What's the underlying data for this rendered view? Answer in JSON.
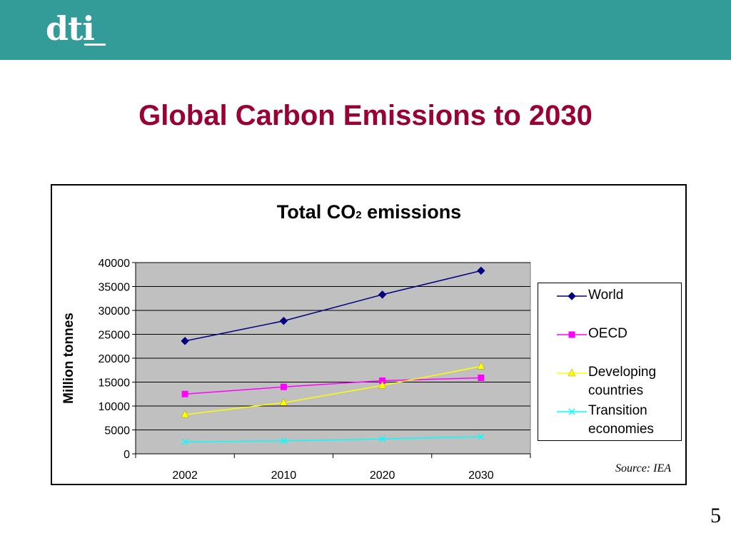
{
  "header": {
    "logo_text": "dti",
    "bar_color": "#339b98"
  },
  "slide": {
    "title": "Global Carbon Emissions to 2030",
    "title_color": "#990033",
    "page_number": "5"
  },
  "chart_data": {
    "type": "line",
    "title": "Total CO",
    "title_subscript": "2",
    "title_suffix": " emissions",
    "ylabel": "Million tonnes",
    "xlabel": "",
    "categories": [
      "2002",
      "2010",
      "2020",
      "2030"
    ],
    "ylim": [
      0,
      40000
    ],
    "yticks": [
      0,
      5000,
      10000,
      15000,
      20000,
      25000,
      30000,
      35000,
      40000
    ],
    "plot_background": "#c0c0c0",
    "grid": true,
    "legend_position": "right",
    "series": [
      {
        "name": "World",
        "values": [
          23600,
          27800,
          33300,
          38300
        ],
        "color": "#000080",
        "marker": "diamond"
      },
      {
        "name": "OECD",
        "values": [
          12500,
          14000,
          15300,
          15900
        ],
        "color": "#ff00ff",
        "marker": "square"
      },
      {
        "name": "Developing countries",
        "values": [
          8200,
          10700,
          14300,
          18300
        ],
        "color": "#ffff00",
        "marker": "triangle"
      },
      {
        "name": "Transition economies",
        "values": [
          2500,
          2700,
          3100,
          3600
        ],
        "color": "#00ffff",
        "marker": "x"
      }
    ]
  },
  "source": "Source: IEA"
}
